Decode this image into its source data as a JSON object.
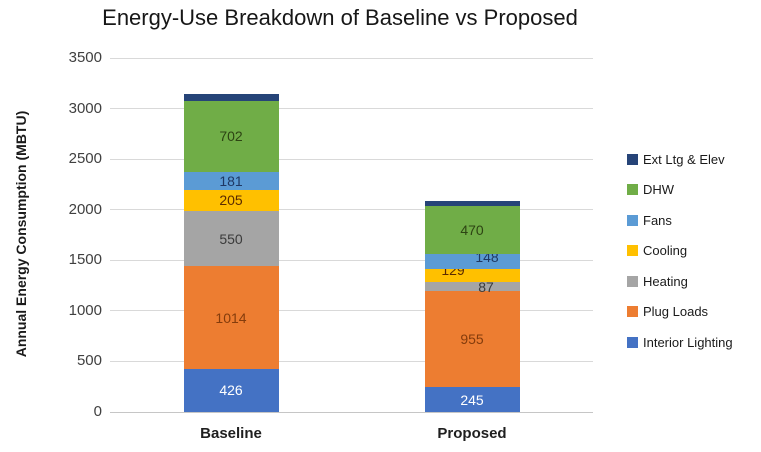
{
  "chart_data": {
    "type": "bar",
    "stacked": true,
    "title": "Energy-Use Breakdown of Baseline vs Proposed",
    "ylabel": "Annual Energy Consumption (MBTU)",
    "xlabel": "",
    "categories": [
      "Baseline",
      "Proposed"
    ],
    "ylim": [
      0,
      3500
    ],
    "ytick_step": 500,
    "yticks": [
      0,
      500,
      1000,
      1500,
      2000,
      2500,
      3000,
      3500
    ],
    "grid": true,
    "legend_position": "right",
    "legend_top_to_bottom": [
      "Ext Ltg & Elev",
      "DHW",
      "Fans",
      "Cooling",
      "Heating",
      "Plug Loads",
      "Interior Lighting"
    ],
    "stack_order": "bottom-to-top",
    "series": [
      {
        "name": "Interior Lighting",
        "color": "#4472C4",
        "label_color": "#FFFFFF",
        "values": [
          426,
          245
        ],
        "labels": [
          "426",
          "245"
        ],
        "label_offsets": [
          [
            0,
            0
          ],
          [
            0,
            0
          ]
        ]
      },
      {
        "name": "Plug Loads",
        "color": "#ED7D31",
        "label_color": "#843C0C",
        "values": [
          1014,
          955
        ],
        "labels": [
          "1014",
          "955"
        ],
        "label_offsets": [
          [
            0,
            0
          ],
          [
            0,
            0
          ]
        ]
      },
      {
        "name": "Heating",
        "color": "#A5A5A5",
        "label_color": "#3B3B3B",
        "values": [
          550,
          87
        ],
        "labels": [
          "550",
          "87"
        ],
        "label_offsets": [
          [
            0,
            0
          ],
          [
            14,
            1
          ]
        ]
      },
      {
        "name": "Cooling",
        "color": "#FFC000",
        "label_color": "#5B2C00",
        "values": [
          205,
          129
        ],
        "labels": [
          "205",
          "129"
        ],
        "label_offsets": [
          [
            0,
            0
          ],
          [
            -19,
            -5
          ]
        ]
      },
      {
        "name": "Fans",
        "color": "#5B9BD5",
        "label_color": "#1F3864",
        "values": [
          181,
          148
        ],
        "labels": [
          "181",
          "148"
        ],
        "label_offsets": [
          [
            0,
            0
          ],
          [
            15,
            -4
          ]
        ]
      },
      {
        "name": "DHW",
        "color": "#70AD47",
        "label_color": "#2D4413",
        "values": [
          702,
          470
        ],
        "labels": [
          "702",
          "470"
        ],
        "label_offsets": [
          [
            0,
            0
          ],
          [
            0,
            0
          ]
        ]
      },
      {
        "name": "Ext Ltg & Elev",
        "color": "#264478",
        "label_color": "#264478",
        "values": [
          70,
          50
        ],
        "labels": [
          "",
          ""
        ],
        "label_offsets": [
          [
            0,
            0
          ],
          [
            0,
            0
          ]
        ],
        "estimated": true
      }
    ]
  }
}
